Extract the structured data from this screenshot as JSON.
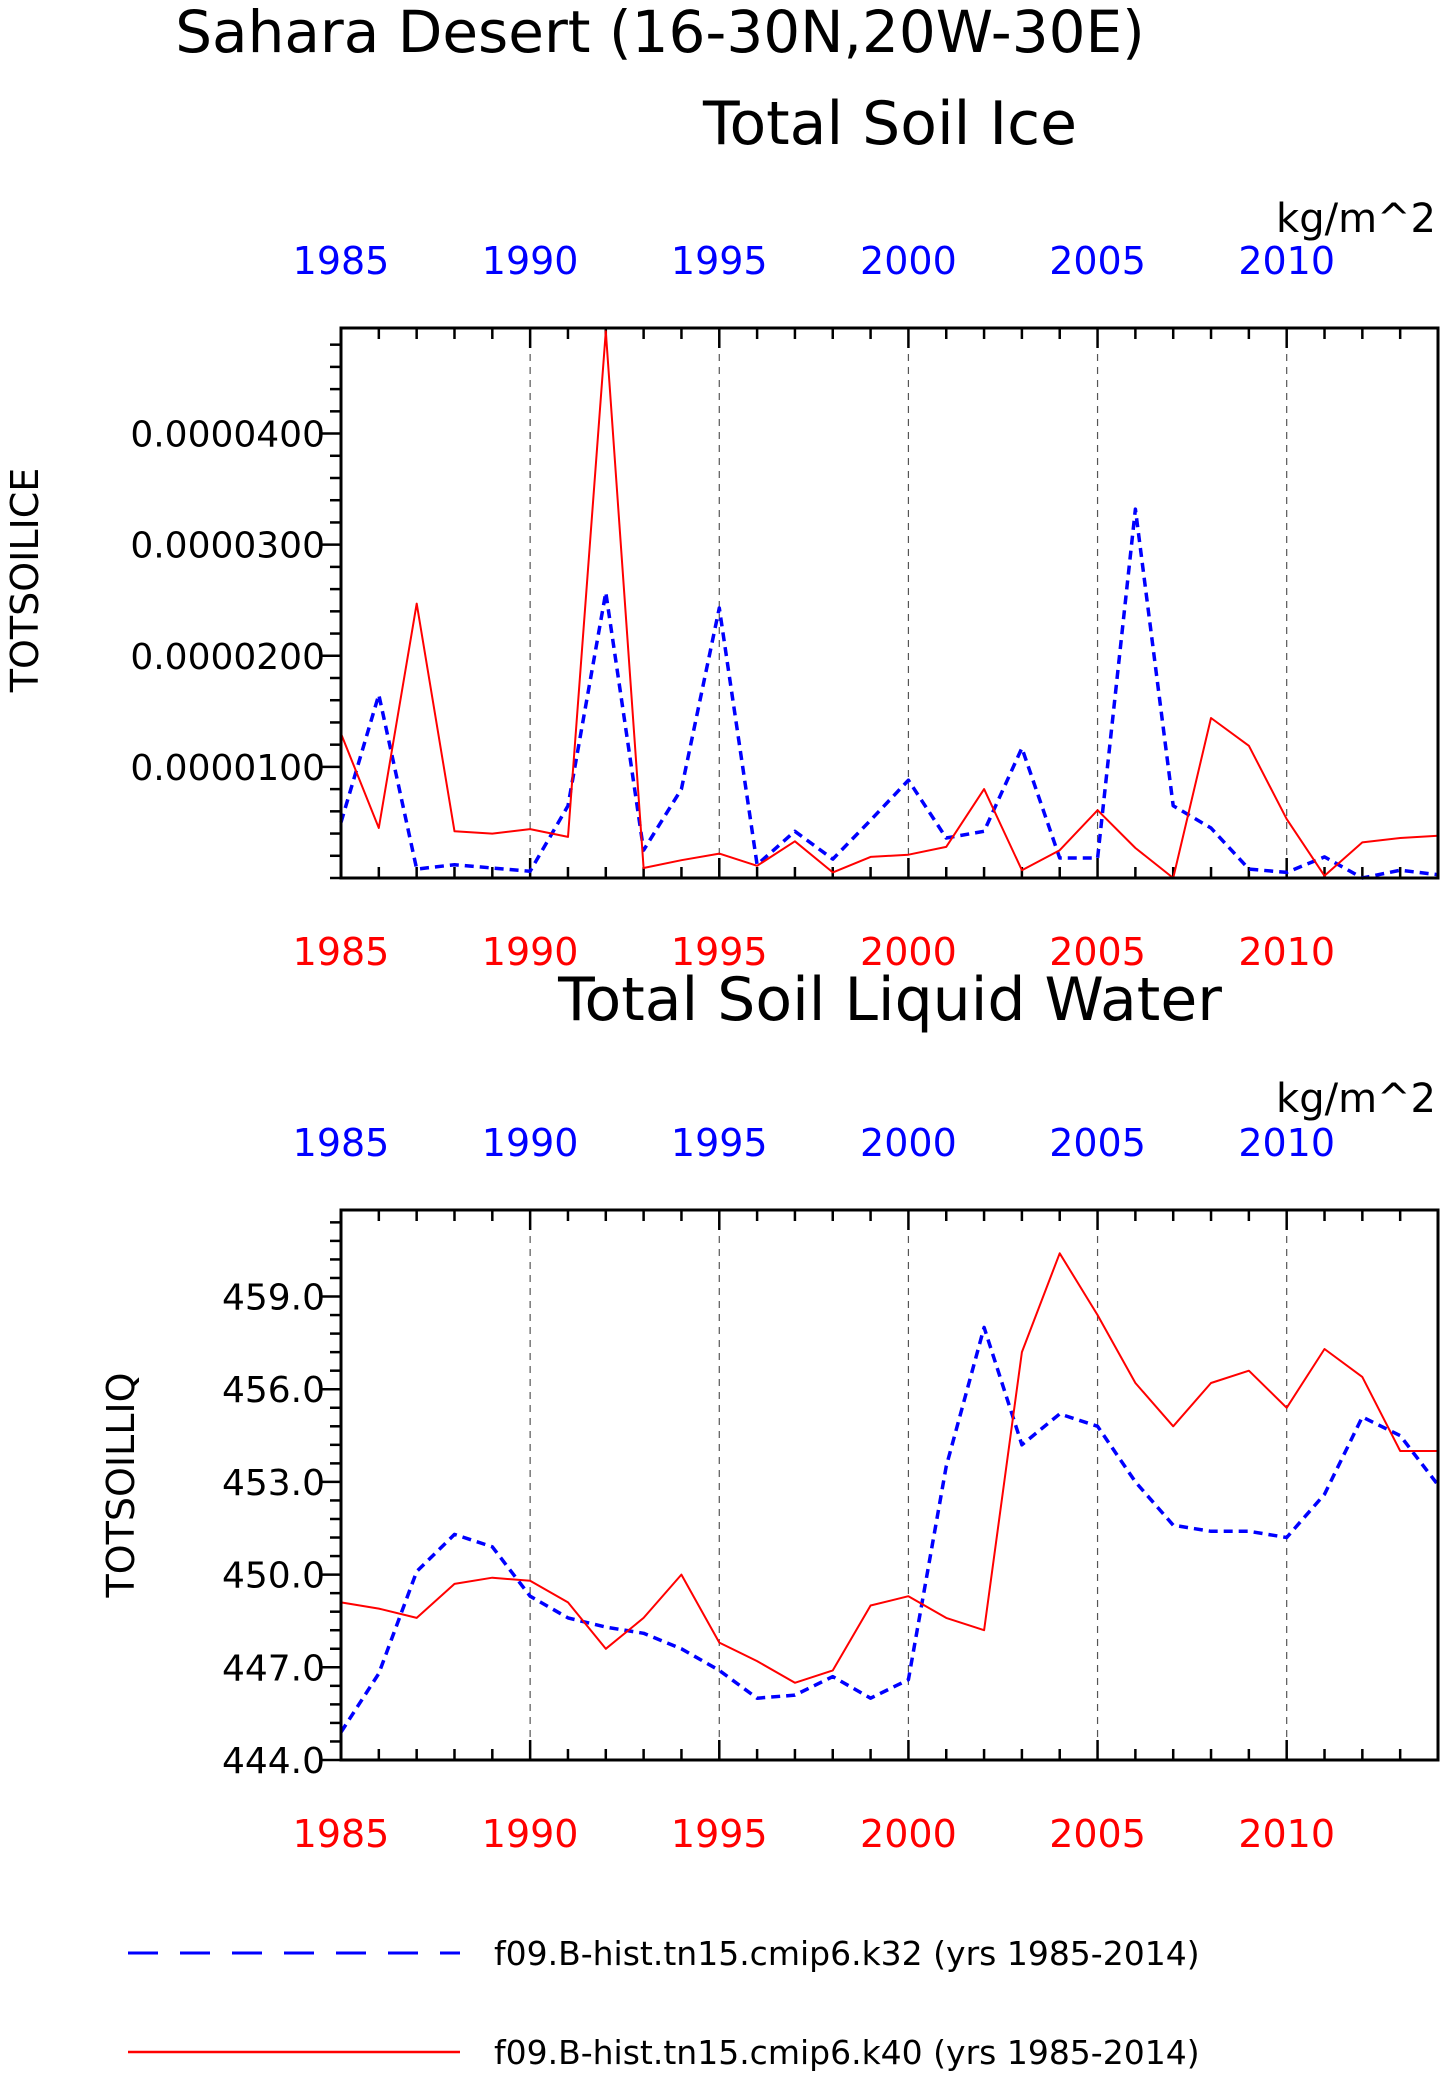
{
  "title": "Sahara Desert (16-30N,20W-30E)",
  "colors": {
    "series_k32": "#0000ff",
    "series_k40": "#ff0000",
    "grid": "#555555"
  },
  "legend": {
    "items": [
      {
        "label": "f09.B-hist.tn15.cmip6.k32 (yrs 1985-2014)",
        "color": "#0000ff",
        "style": "dashed"
      },
      {
        "label": "f09.B-hist.tn15.cmip6.k40 (yrs 1985-2014)",
        "color": "#ff0000",
        "style": "solid"
      }
    ]
  },
  "chart_data": [
    {
      "type": "line",
      "title": "Total Soil Ice",
      "units": "kg/m^2",
      "ylabel": "TOTSOILICE",
      "xlim": [
        1985,
        2014
      ],
      "ylim": [
        0,
        4.95e-05
      ],
      "yticks": [
        "0.0000100",
        "0.0000200",
        "0.0000300",
        "0.0000400"
      ],
      "ytick_values": [
        1e-05,
        2e-05,
        3e-05,
        4e-05
      ],
      "xticks_top": [
        "1985",
        "1990",
        "1995",
        "2000",
        "2005",
        "2010"
      ],
      "xticks_bottom": [
        "1985",
        "1990",
        "1995",
        "2000",
        "2005",
        "2010"
      ],
      "xtick_values": [
        1985,
        1990,
        1995,
        2000,
        2005,
        2010
      ],
      "grid": "vertical dashed at 5-year ticks",
      "x": [
        1985,
        1986,
        1987,
        1988,
        1989,
        1990,
        1991,
        1992,
        1993,
        1994,
        1995,
        1996,
        1997,
        1998,
        1999,
        2000,
        2001,
        2002,
        2003,
        2004,
        2005,
        2006,
        2007,
        2008,
        2009,
        2010,
        2011,
        2012,
        2013,
        2014
      ],
      "series": [
        {
          "name": "f09.B-hist.tn15.cmip6.k32 (yrs 1985-2014)",
          "style": "dashed",
          "values": [
            5e-06,
            1.65e-05,
            8e-07,
            1.2e-06,
            9e-07,
            6e-07,
            6.5e-06,
            2.57e-05,
            2.5e-06,
            8e-06,
            2.43e-05,
            1.2e-06,
            4.2e-06,
            1.7e-06,
            5.2e-06,
            8.8e-06,
            3.6e-06,
            4.2e-06,
            1.17e-05,
            1.8e-06,
            1.8e-06,
            3.32e-05,
            6.5e-06,
            4.5e-06,
            8e-07,
            5e-07,
            1.9e-06,
            0.0,
            7e-07,
            3e-07
          ]
        },
        {
          "name": "f09.B-hist.tn15.cmip6.k40 (yrs 1985-2014)",
          "style": "solid",
          "values": [
            1.3e-05,
            4.5e-06,
            2.47e-05,
            4.2e-06,
            4e-06,
            4.4e-06,
            3.7e-06,
            4.92e-05,
            9e-07,
            1.6e-06,
            2.2e-06,
            1.1e-06,
            3.3e-06,
            5e-07,
            1.9e-06,
            2.1e-06,
            2.8e-06,
            8e-06,
            7e-07,
            2.5e-06,
            6.1e-06,
            2.7e-06,
            0.0,
            1.44e-05,
            1.19e-05,
            5.3e-06,
            2e-07,
            3.2e-06,
            3.6e-06,
            3.8e-06
          ]
        }
      ]
    },
    {
      "type": "line",
      "title": "Total Soil Liquid Water",
      "units": "kg/m^2",
      "ylabel": "TOTSOILLIQ",
      "xlim": [
        1985,
        2014
      ],
      "ylim": [
        444.0,
        461.8
      ],
      "yticks": [
        "444.0",
        "447.0",
        "450.0",
        "453.0",
        "456.0",
        "459.0"
      ],
      "ytick_values": [
        444,
        447,
        450,
        453,
        456,
        459
      ],
      "xticks_top": [
        "1985",
        "1990",
        "1995",
        "2000",
        "2005",
        "2010"
      ],
      "xticks_bottom": [
        "1985",
        "1990",
        "1995",
        "2000",
        "2005",
        "2010"
      ],
      "xtick_values": [
        1985,
        1990,
        1995,
        2000,
        2005,
        2010
      ],
      "grid": "vertical dashed at 5-year ticks",
      "x": [
        1985,
        1986,
        1987,
        1988,
        1989,
        1990,
        1991,
        1992,
        1993,
        1994,
        1995,
        1996,
        1997,
        1998,
        1999,
        2000,
        2001,
        2002,
        2003,
        2004,
        2005,
        2006,
        2007,
        2008,
        2009,
        2010,
        2011,
        2012,
        2013,
        2014
      ],
      "series": [
        {
          "name": "f09.B-hist.tn15.cmip6.k32 (yrs 1985-2014)",
          "style": "dashed",
          "values": [
            444.9,
            446.8,
            450.1,
            451.3,
            450.9,
            449.3,
            448.6,
            448.3,
            448.1,
            447.6,
            446.9,
            446.0,
            446.1,
            446.7,
            446.0,
            446.6,
            453.5,
            458.0,
            454.2,
            455.2,
            454.8,
            453.0,
            451.6,
            451.4,
            451.4,
            451.2,
            452.6,
            455.1,
            454.5,
            452.9
          ]
        },
        {
          "name": "f09.B-hist.tn15.cmip6.k40 (yrs 1985-2014)",
          "style": "solid",
          "values": [
            449.1,
            448.9,
            448.6,
            449.7,
            449.9,
            449.8,
            449.1,
            447.6,
            448.6,
            450.0,
            447.8,
            447.2,
            446.5,
            446.9,
            449.0,
            449.3,
            448.6,
            448.2,
            457.2,
            460.4,
            458.4,
            456.2,
            454.8,
            456.2,
            456.6,
            455.4,
            457.3,
            456.4,
            454.0,
            454.0
          ]
        }
      ]
    }
  ]
}
